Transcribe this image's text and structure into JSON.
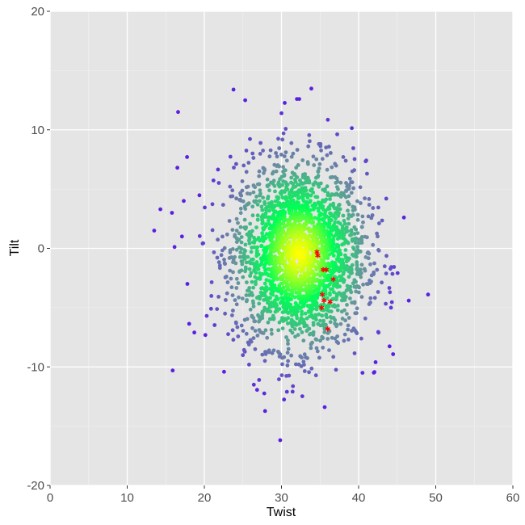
{
  "chart_data": {
    "type": "scatter",
    "title": "",
    "xlabel": "Twist",
    "ylabel": "Tilt",
    "xlim": [
      0,
      60
    ],
    "ylim": [
      -20,
      20
    ],
    "x_ticks": [
      "0",
      "10",
      "20",
      "30",
      "40",
      "50",
      "60"
    ],
    "y_ticks": [
      "-20",
      "-10",
      "0",
      "10",
      "20"
    ],
    "grid": true,
    "legend": "none",
    "density_points": {
      "description": "dense cloud of points colored by local density, yellow at center through green to blue/purple at edges",
      "center": [
        32.3,
        -0.5
      ],
      "sd": [
        4.3,
        3.9
      ],
      "approx_count": 2500,
      "outliers": [
        [
          16.6,
          11.5
        ],
        [
          25.3,
          12.5
        ],
        [
          32.0,
          12.6
        ],
        [
          32.3,
          12.6
        ],
        [
          30.0,
          11.4
        ],
        [
          13.5,
          1.5
        ],
        [
          14.3,
          3.3
        ],
        [
          15.8,
          3.0
        ],
        [
          15.9,
          -10.3
        ],
        [
          18.7,
          -7.1
        ],
        [
          49.0,
          -3.9
        ],
        [
          35.6,
          -13.4
        ],
        [
          30.7,
          -12.1
        ],
        [
          27.1,
          -11.1
        ],
        [
          16.5,
          6.8
        ],
        [
          17.8,
          -3.0
        ],
        [
          17.1,
          1.0
        ],
        [
          44.2,
          -5.0
        ],
        [
          42.2,
          -9.6
        ],
        [
          40.5,
          -10.5
        ]
      ]
    },
    "highlight_points": {
      "marker": "asterisk",
      "color": "#ff0000",
      "points": [
        [
          34.6,
          -0.3
        ],
        [
          34.7,
          -0.6
        ],
        [
          35.4,
          -1.8
        ],
        [
          35.8,
          -1.8
        ],
        [
          36.7,
          -2.6
        ],
        [
          35.3,
          -3.9
        ],
        [
          35.5,
          -4.4
        ],
        [
          36.3,
          -4.5
        ],
        [
          35.2,
          -5.0
        ],
        [
          36.0,
          -6.8
        ]
      ]
    },
    "colors": {
      "panel_background": "#e5e5e5",
      "grid_major": "#ffffff",
      "density_high": "#ffff00",
      "density_mid": "#00ff55",
      "density_low": "#6b8fa0",
      "density_outlier": "#5a1fe0"
    }
  }
}
